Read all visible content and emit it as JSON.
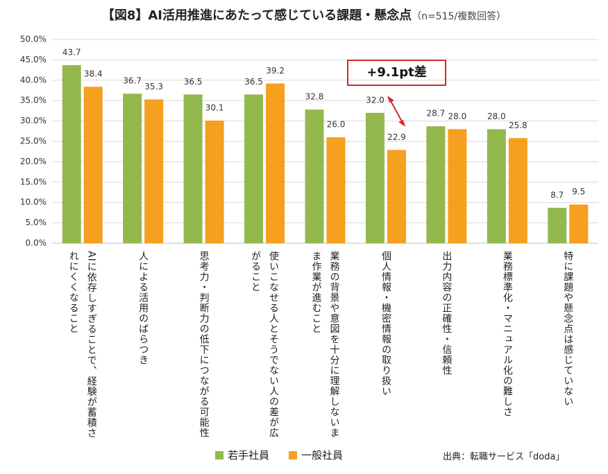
{
  "chart_data": {
    "type": "bar",
    "title": "【図8】AI活用推進にあたって感じている課題・懸念点",
    "subtitle": "（n=515/複数回答）",
    "categories": [
      "AIに依存しすぎることで、経験が蓄積されにくくなること",
      "人による活用のばらつき",
      "思考力・判断力の低下につながる可能性",
      "使いこなせる人とそうでない人の差が広がること",
      "業務の背景や意図を十分に理解しないまま作業が進むこと",
      "個人情報・機密情報の取り扱い",
      "出力内容の正確性・信頼性",
      "業務標準化・マニュアル化の難しさ",
      "特に課題や懸念点は感じていない"
    ],
    "series": [
      {
        "name": "若手社員",
        "color": "#92b84e",
        "values": [
          43.7,
          36.7,
          36.5,
          36.5,
          32.8,
          32.0,
          28.7,
          28.0,
          8.7
        ],
        "value_labels": [
          "43.7",
          "36.7",
          "36.5",
          "36.5",
          "32.8",
          "32.0",
          "28.7",
          "28.0",
          "8.7"
        ]
      },
      {
        "name": "一般社員",
        "color": "#f5a01e",
        "values": [
          38.4,
          35.3,
          30.1,
          39.2,
          26.0,
          22.9,
          28.0,
          25.8,
          9.5
        ],
        "value_labels": [
          "38.4",
          "35.3",
          "30.1",
          "39.2",
          "26.0",
          "22.9",
          "28.0",
          "25.8",
          "9.5"
        ]
      }
    ],
    "ylim": [
      0,
      50
    ],
    "yticks": [
      {
        "value": 0,
        "label": "0.0%"
      },
      {
        "value": 5,
        "label": "5.0%"
      },
      {
        "value": 10,
        "label": "10.0%"
      },
      {
        "value": 15,
        "label": "15.0%"
      },
      {
        "value": 20,
        "label": "20.0%"
      },
      {
        "value": 25,
        "label": "25.0%"
      },
      {
        "value": 30,
        "label": "30.0%"
      },
      {
        "value": 35,
        "label": "35.0%"
      },
      {
        "value": 40,
        "label": "40.0%"
      },
      {
        "value": 45,
        "label": "45.0%"
      },
      {
        "value": 50,
        "label": "50.0%"
      }
    ],
    "grid": true,
    "legend": "bottom",
    "annotation": "+9.1pt差",
    "source": "出典：転職サービス「doda」"
  }
}
